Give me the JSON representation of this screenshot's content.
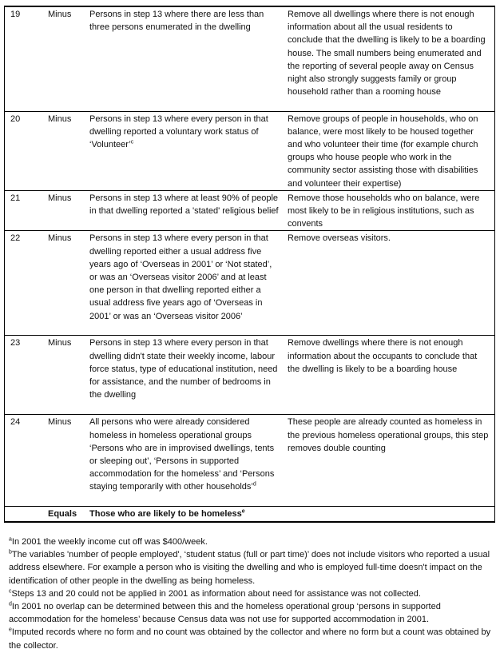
{
  "rows": [
    {
      "step": "19",
      "op": "Minus",
      "criteria": "Persons in step 13 where there are less than three persons enumerated in the dwelling",
      "sup": "",
      "rationale": "Remove all dwellings where there is not enough information about all the usual residents to conclude that the dwelling is likely to be a boarding house. The small numbers being enumerated and the reporting of several people away on Census night also strongly suggests family or group household rather than a rooming house"
    },
    {
      "step": "20",
      "op": "Minus",
      "criteria": "Persons in step 13 where every person in that dwelling reported a voluntary work status of ‘Volunteer’",
      "sup": "c",
      "rationale": "Remove groups of people in households, who on balance, were most likely to be housed together and who volunteer their time (for example church groups who house people who work in the community sector assisting those with disabilities and volunteer their expertise)"
    },
    {
      "step": "21",
      "op": "Minus",
      "criteria": "Persons in step 13 where at least 90% of people in that dwelling reported a 'stated' religious belief",
      "sup": "",
      "rationale": "Remove those households who on balance, were most likely to be in religious institutions, such as convents"
    },
    {
      "step": "22",
      "op": "Minus",
      "criteria": "Persons in step 13 where every person in that dwelling reported either a usual address five years ago of ‘Overseas in 2001’ or ‘Not stated’, or was an ‘Overseas visitor 2006’ and at least one person in that dwelling reported either a usual address five years ago of ‘Overseas in 2001’ or was an ‘Overseas visitor 2006’",
      "sup": "",
      "rationale": "Remove overseas visitors."
    },
    {
      "step": "23",
      "op": "Minus",
      "criteria": "Persons in step 13 where every person in that dwelling didn't state their weekly income, labour force status, type of educational institution, need for assistance, and the number of bedrooms in the dwelling",
      "sup": "",
      "rationale": "Remove dwellings where there is not enough information about the occupants to conclude that the dwelling is likely to be a boarding house"
    },
    {
      "step": "24",
      "op": "Minus",
      "criteria": "All persons who were already considered homeless in homeless operational groups ‘Persons who are in improvised dwellings, tents or sleeping out’, ‘Persons in supported accommodation for the homeless’ and ‘Persons staying temporarily with other households’",
      "sup": "d",
      "rationale": "These people are already counted as homeless in the previous homeless operational groups, this step removes double counting"
    }
  ],
  "total": {
    "op": "Equals",
    "label": "Those who are likely to be homeless",
    "sup": "e"
  },
  "footnotes": [
    {
      "mark": "a",
      "text": "In 2001 the weekly income cut off was $400/week."
    },
    {
      "mark": "b",
      "text": "The variables 'number of people employed', ‘student status (full or part time)’ does not include visitors who reported a usual address elsewhere. For example a person who is visiting the dwelling and who is employed full-time doesn't impact on the identification of other people in the dwelling as being homeless."
    },
    {
      "mark": "c",
      "text": "Steps 13 and 20 could not be applied in 2001 as information about need for assistance was not collected."
    },
    {
      "mark": "d",
      "text": "In 2001 no overlap can be determined between this and the homeless operational group ‘persons in supported accommodation for the homeless’ because Census data was not use for supported accommodation in 2001."
    },
    {
      "mark": "e",
      "text": "Imputed records where no form and no count was obtained by the collector and where no form but a count was obtained by the collector."
    }
  ]
}
